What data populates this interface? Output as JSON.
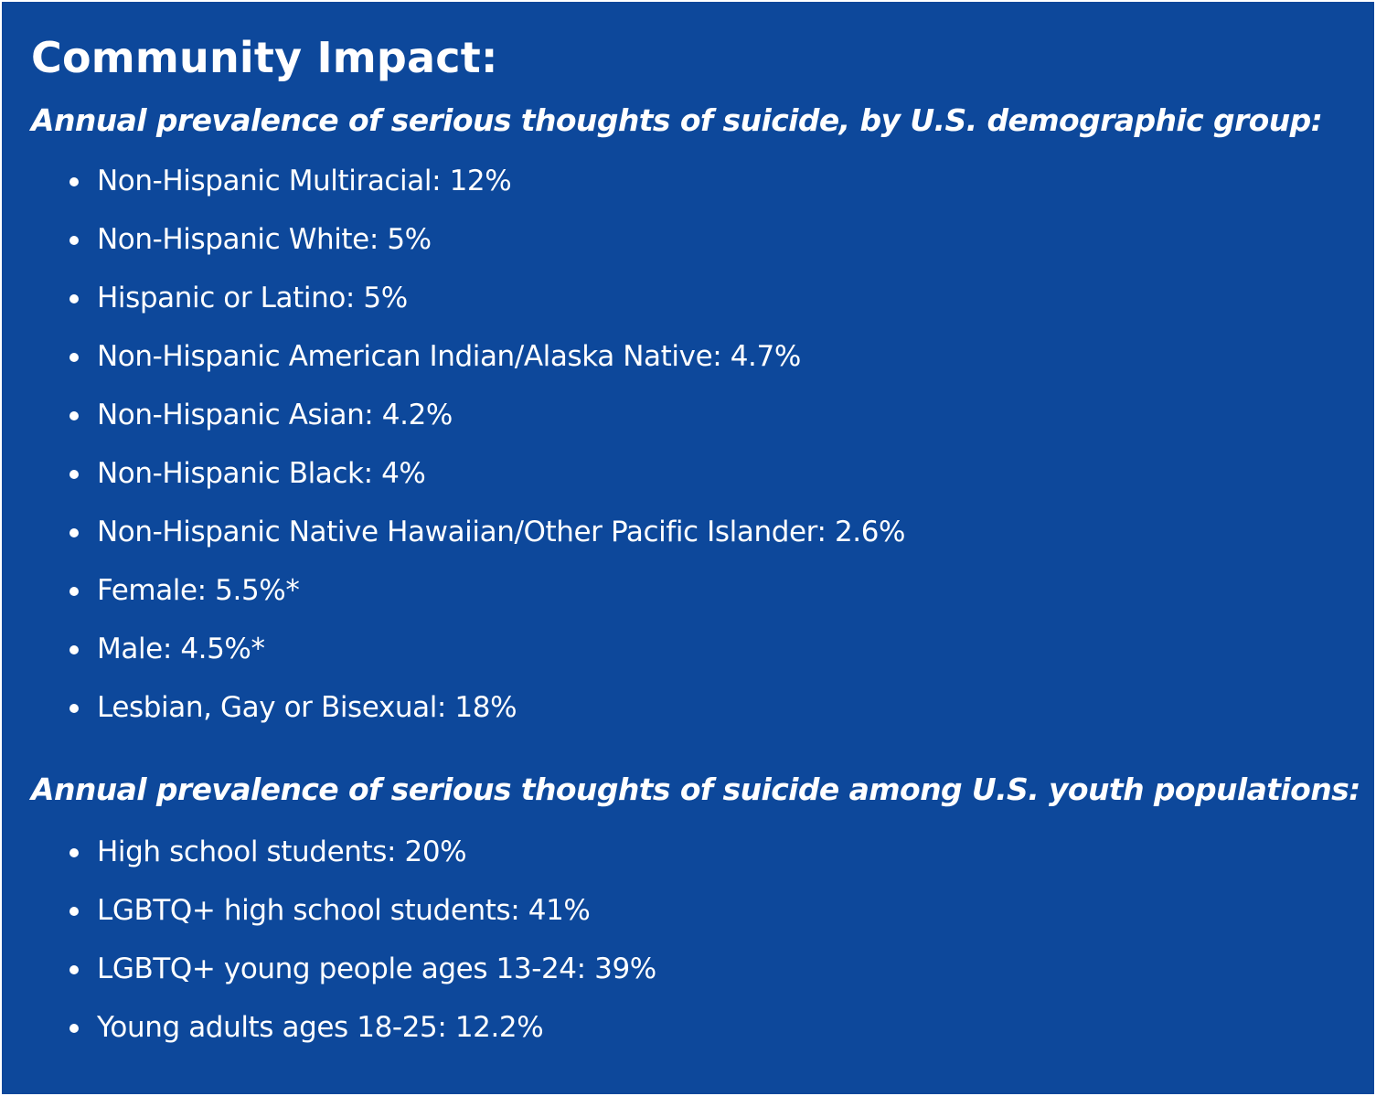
{
  "title": "Community Impact:",
  "sections": [
    {
      "heading": "Annual prevalence of serious thoughts of suicide, by U.S. demographic group:",
      "items": [
        "Non-Hispanic Multiracial: 12%",
        "Non-Hispanic White: 5%",
        "Hispanic or Latino: 5%",
        "Non-Hispanic American Indian/Alaska Native: 4.7%",
        "Non-Hispanic Asian: 4.2%",
        "Non-Hispanic Black: 4%",
        "Non-Hispanic Native Hawaiian/Other Pacific Islander: 2.6%",
        "Female: 5.5%*",
        "Male: 4.5%*",
        "Lesbian, Gay or Bisexual: 18%"
      ]
    },
    {
      "heading": "Annual prevalence of serious thoughts of suicide among U.S. youth populations:",
      "items": [
        "High school students: 20%",
        "LGBTQ+ high school students: 41%",
        "LGBTQ+ young people ages 13-24: 39%",
        "Young adults ages 18-25: 12.2%"
      ]
    }
  ],
  "colors": {
    "background": "#0d489b",
    "text": "#ffffff"
  }
}
